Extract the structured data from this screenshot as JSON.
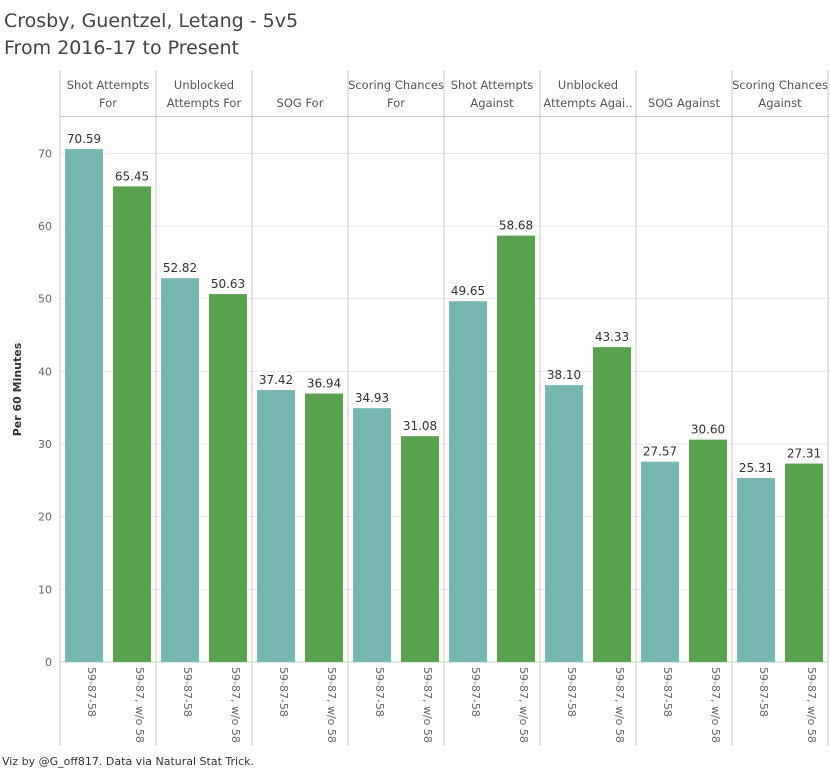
{
  "title": "Crosby, Guentzel, Letang - 5v5",
  "subtitle": "From 2016-17 to Present",
  "footer": "Viz by @G_off817. Data via Natural Stat Trick.",
  "colors": {
    "with": "#76b7b2",
    "without": "#59a14f",
    "grid": "#e8e8e8",
    "divider": "#c8c8c8"
  },
  "chart_data": {
    "type": "bar",
    "ylabel": "Per 60 Minutes",
    "ylim": [
      0,
      75
    ],
    "yticks": [
      0,
      10,
      20,
      30,
      40,
      50,
      60,
      70
    ],
    "categories": [
      {
        "label": [
          "Shot Attempts",
          "For"
        ]
      },
      {
        "label": [
          "Unblocked",
          "Attempts For"
        ]
      },
      {
        "label": [
          "SOG For"
        ]
      },
      {
        "label": [
          "Scoring Chances",
          "For"
        ]
      },
      {
        "label": [
          "Shot Attempts",
          "Against"
        ]
      },
      {
        "label": [
          "Unblocked",
          "Attempts Agai.."
        ]
      },
      {
        "label": [
          "SOG Against"
        ]
      },
      {
        "label": [
          "Scoring Chances",
          "Against"
        ]
      }
    ],
    "series": [
      {
        "name": "59-87-58",
        "values": [
          70.59,
          52.82,
          37.42,
          34.93,
          49.65,
          38.1,
          27.57,
          25.31
        ]
      },
      {
        "name": "59-87, w/o 58",
        "values": [
          65.45,
          50.63,
          36.94,
          31.08,
          58.68,
          43.33,
          30.6,
          27.31
        ]
      }
    ],
    "value_labels": [
      [
        "70.59",
        "52.82",
        "37.42",
        "34.93",
        "49.65",
        "38.10",
        "27.57",
        "25.31"
      ],
      [
        "65.45",
        "50.63",
        "36.94",
        "31.08",
        "58.68",
        "43.33",
        "30.60",
        "27.31"
      ]
    ],
    "grid": true
  }
}
